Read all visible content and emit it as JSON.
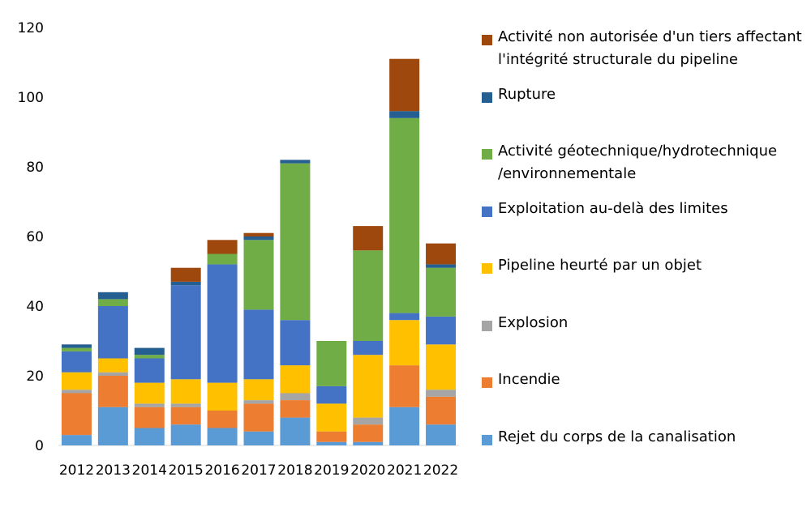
{
  "chart_data": {
    "type": "bar",
    "stacked": true,
    "categories": [
      "2012",
      "2013",
      "2014",
      "2015",
      "2016",
      "2017",
      "2018",
      "2019",
      "2020",
      "2021",
      "2022"
    ],
    "ylim": [
      0,
      120
    ],
    "yticks": [
      0,
      20,
      40,
      60,
      80,
      100,
      120
    ],
    "grid": false,
    "legend_position": "right",
    "series": [
      {
        "name": "Rejet du corps de la canalisation",
        "color": "#5B9BD5",
        "values": [
          3,
          11,
          5,
          6,
          5,
          4,
          8,
          1,
          1,
          11,
          6
        ]
      },
      {
        "name": "Incendie",
        "color": "#ED7D31",
        "values": [
          12,
          9,
          6,
          5,
          5,
          8,
          5,
          3,
          5,
          12,
          8
        ]
      },
      {
        "name": "Explosion",
        "color": "#A5A5A5",
        "values": [
          1,
          1,
          1,
          1,
          0,
          1,
          2,
          0,
          2,
          0,
          2
        ]
      },
      {
        "name": "Pipeline heurté par un objet",
        "color": "#FFC000",
        "values": [
          5,
          4,
          6,
          7,
          8,
          6,
          8,
          8,
          18,
          13,
          13
        ]
      },
      {
        "name": "Exploitation au-delà des limites",
        "color": "#4472C4",
        "values": [
          6,
          15,
          7,
          27,
          34,
          20,
          13,
          5,
          4,
          2,
          8
        ]
      },
      {
        "name": "Activité géotechnique/hydrotechnique\n/environnementale",
        "color": "#70AD47",
        "values": [
          1,
          2,
          1,
          0,
          3,
          20,
          45,
          13,
          26,
          56,
          14
        ]
      },
      {
        "name": "Rupture",
        "color": "#255E91",
        "values": [
          1,
          2,
          2,
          1,
          0,
          1,
          1,
          0,
          0,
          2,
          1
        ]
      },
      {
        "name": "Activité non autorisée d'un tiers affectant\nl'intégrité structurale du pipeline",
        "color": "#9E480E",
        "values": [
          0,
          0,
          0,
          4,
          4,
          1,
          0,
          0,
          7,
          15,
          6
        ]
      }
    ]
  }
}
